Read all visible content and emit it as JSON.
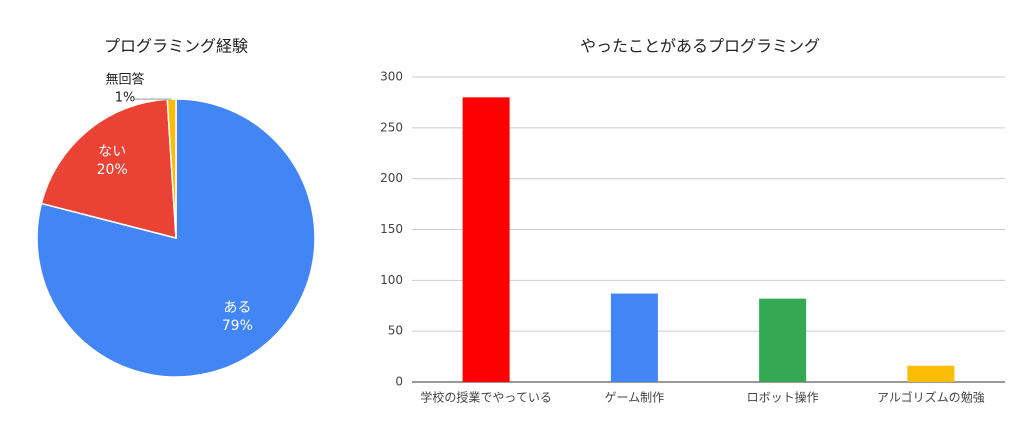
{
  "chart_data": [
    {
      "type": "pie",
      "title": "プログラミング経験",
      "categories": [
        "ある",
        "ない",
        "無回答"
      ],
      "values": [
        79,
        20,
        1
      ],
      "value_labels": [
        "79%",
        "20%",
        "1%"
      ],
      "colors": [
        "#4285f4",
        "#ea4335",
        "#fbbc04"
      ]
    },
    {
      "type": "bar",
      "title": "やったことがあるプログラミング",
      "categories": [
        "学校の授業でやっている",
        "ゲーム制作",
        "ロボット操作",
        "アルゴリズムの勉強"
      ],
      "values": [
        280,
        87,
        82,
        16
      ],
      "colors": [
        "#ff0000",
        "#4285f4",
        "#34a853",
        "#fbbc04"
      ],
      "ylim": [
        0,
        300
      ],
      "yticks": [
        0,
        50,
        100,
        150,
        200,
        250,
        300
      ],
      "grid": true
    }
  ]
}
